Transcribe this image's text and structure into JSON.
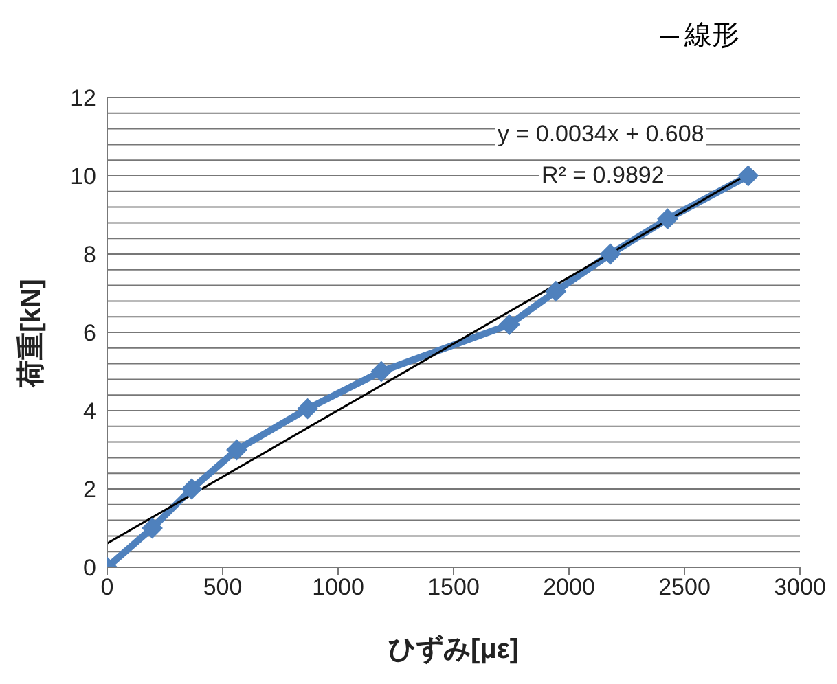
{
  "chart_data": {
    "type": "line",
    "xlabel": "ひずみ[με]",
    "ylabel": "荷重[kN]",
    "xlim": [
      0,
      3000
    ],
    "xticks": [
      0,
      500,
      1000,
      1500,
      2000,
      2500,
      3000
    ],
    "ylim": [
      0,
      12
    ],
    "yticks": [
      0,
      {
        "value": 0.4,
        "label": null
      },
      {
        "value": 0.8,
        "label": null
      },
      {
        "value": 1.2,
        "label": null
      },
      {
        "value": 1.6,
        "label": null
      },
      2,
      {
        "value": 2.4,
        "label": null
      },
      {
        "value": 2.8,
        "label": null
      },
      {
        "value": 3.2,
        "label": null
      },
      {
        "value": 3.6,
        "label": null
      },
      4,
      {
        "value": 4.4,
        "label": null
      },
      {
        "value": 4.8,
        "label": null
      },
      {
        "value": 5.2,
        "label": null
      },
      {
        "value": 5.6,
        "label": null
      },
      6,
      {
        "value": 6.4,
        "label": null
      },
      {
        "value": 6.8,
        "label": null
      },
      {
        "value": 7.2,
        "label": null
      },
      {
        "value": 7.6,
        "label": null
      },
      8,
      {
        "value": 8.4,
        "label": null
      },
      {
        "value": 8.8,
        "label": null
      },
      {
        "value": 9.2,
        "label": null
      },
      {
        "value": 9.6,
        "label": null
      },
      10,
      {
        "value": 10.4,
        "label": null
      },
      {
        "value": 10.8,
        "label": null
      },
      {
        "value": 11.2,
        "label": null
      },
      {
        "value": 11.6,
        "label": null
      },
      12
    ],
    "grid": "y",
    "legend": "top right",
    "series": [
      {
        "color": "#4f81bd",
        "marker": "diamond",
        "x": [
          0,
          195,
          366,
          561,
          868,
          1187,
          1742,
          1943,
          2179,
          2427,
          2776
        ],
        "values": [
          0,
          1.0,
          2.0,
          3.0,
          4.05,
          5.0,
          6.2,
          7.05,
          8.0,
          8.9,
          10.0
        ]
      },
      {
        "name": "線形",
        "color": "#000000",
        "marker": "none",
        "x": [
          0,
          2800
        ],
        "values": [
          0.61,
          10.13
        ]
      }
    ],
    "annotations": [
      "y = 0.0034x + 0.608",
      "R² = 0.9892"
    ]
  }
}
